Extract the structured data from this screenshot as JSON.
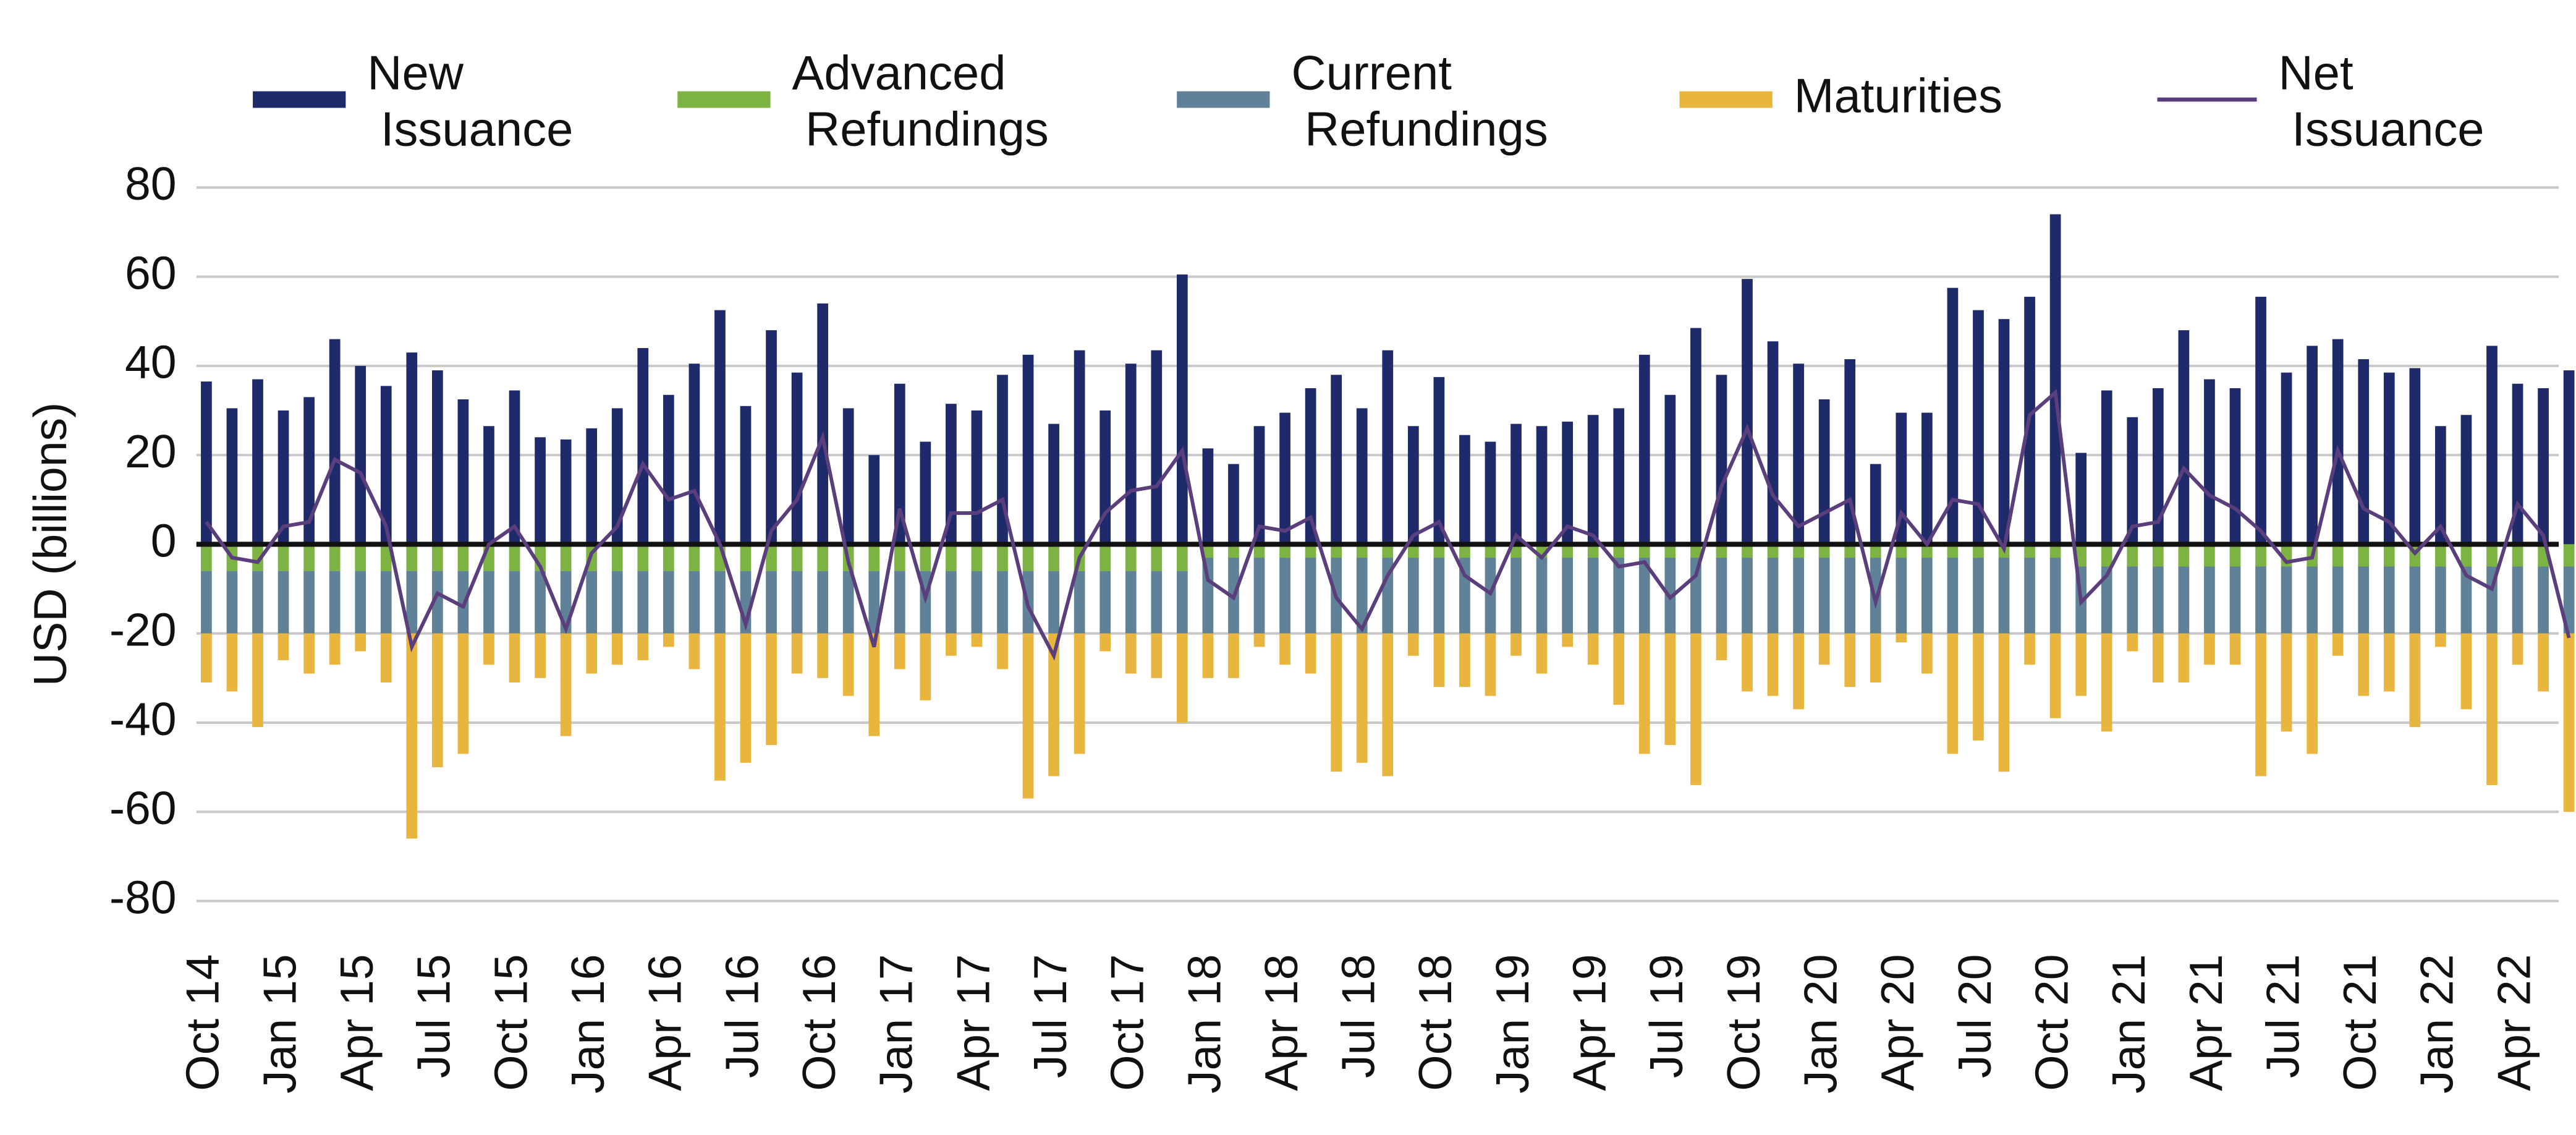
{
  "chart_data": {
    "type": "bar",
    "stacked": true,
    "y_label": "USD (billions)",
    "ylim": [
      -80,
      80
    ],
    "yticks": [
      -80,
      -60,
      -40,
      -20,
      0,
      20,
      40,
      60,
      80
    ],
    "grid": true,
    "legend": "top",
    "categories": [
      "Oct 14",
      null,
      null,
      "Jan 15",
      null,
      null,
      "Apr 15",
      null,
      null,
      "Jul 15",
      null,
      null,
      "Oct 15",
      null,
      null,
      "Jan 16",
      null,
      null,
      "Apr 16",
      null,
      null,
      "Jul 16",
      null,
      null,
      "Oct 16",
      null,
      null,
      "Jan 17",
      null,
      null,
      "Apr 17",
      null,
      null,
      "Jul 17",
      null,
      null,
      "Oct 17",
      null,
      null,
      "Jan 18",
      null,
      null,
      "Apr 18",
      null,
      null,
      "Jul 18",
      null,
      null,
      "Oct 18",
      null,
      null,
      "Jan 19",
      null,
      null,
      "Apr 19",
      null,
      null,
      "Jul 19",
      null,
      null,
      "Oct 19",
      null,
      null,
      "Jan 20",
      null,
      null,
      "Apr 20",
      null,
      null,
      "Jul 20",
      null,
      null,
      "Oct 20",
      null,
      null,
      "Jan 21",
      null,
      null,
      "Apr 21",
      null,
      null,
      "Jul 21",
      null,
      null,
      "Oct 21",
      null,
      null,
      "Jan 22",
      null,
      null,
      "Apr 22",
      null,
      null
    ],
    "series": [
      {
        "name": "New Issuance",
        "color": "#1f2a6b",
        "type": "bar",
        "values": [
          36.5,
          30.5,
          37,
          30,
          33,
          46,
          40,
          35.5,
          43,
          39,
          32.5,
          26.5,
          34.5,
          24,
          23.5,
          26,
          30.5,
          44,
          33.5,
          40.5,
          52.5,
          31,
          48,
          38.5,
          54,
          30.5,
          20,
          36,
          23,
          31.5,
          30,
          38,
          42.5,
          27,
          43.5,
          30,
          40.5,
          43.5,
          60.5,
          21.5,
          18,
          26.5,
          29.5,
          35,
          38,
          30.5,
          43.5,
          26.5,
          37.5,
          24.5,
          23,
          27,
          26.5,
          27.5,
          29,
          30.5,
          42.5,
          33.5,
          48.5,
          38,
          59.5,
          45.5,
          40.5,
          32.5,
          41.5,
          18,
          29.5,
          29.5,
          57.5,
          52.5,
          50.5,
          55.5,
          74,
          20.5,
          34.5,
          28.5,
          35,
          48,
          37,
          35,
          55.5,
          38.5,
          44.5,
          46,
          41.5,
          38.5,
          39.5,
          26.5,
          29,
          44.5,
          36,
          35,
          39
        ]
      },
      {
        "name": "Advanced Refundings",
        "color": "#7db342",
        "type": "bar",
        "values": [
          -6,
          -6,
          -6,
          -6,
          -6,
          -6,
          -6,
          -6,
          -6,
          -6,
          -6,
          -6,
          -6,
          -6,
          -6,
          -6,
          -6,
          -6,
          -6,
          -6,
          -6,
          -6,
          -6,
          -6,
          -6,
          -6,
          -6,
          -6,
          -6,
          -6,
          -6,
          -6,
          -6,
          -6,
          -6,
          -6,
          -6,
          -6,
          -6,
          -3,
          -3,
          -3,
          -3,
          -3,
          -3,
          -3,
          -3,
          -3,
          -3,
          -3,
          -3,
          -3,
          -3,
          -3,
          -3,
          -3,
          -3,
          -3,
          -3,
          -3,
          -3,
          -3,
          -3,
          -3,
          -3,
          -3,
          -3,
          -3,
          -3,
          -3,
          -3,
          -3,
          -3,
          -5,
          -5,
          -5,
          -5,
          -5,
          -5,
          -5,
          -5,
          -5,
          -5,
          -5,
          -5,
          -5,
          -5,
          -5,
          -5,
          -5,
          -5,
          -5,
          -5
        ]
      },
      {
        "name": "Current Refundings",
        "color": "#5f8298",
        "type": "bar",
        "values": [
          -14,
          -14,
          -14,
          -14,
          -14,
          -14,
          -14,
          -14,
          -14,
          -14,
          -14,
          -14,
          -14,
          -14,
          -14,
          -14,
          -14,
          -14,
          -14,
          -14,
          -14,
          -14,
          -14,
          -14,
          -14,
          -14,
          -14,
          -14,
          -14,
          -14,
          -14,
          -14,
          -14,
          -14,
          -14,
          -14,
          -14,
          -14,
          -14,
          -17,
          -17,
          -17,
          -17,
          -17,
          -17,
          -17,
          -17,
          -17,
          -17,
          -17,
          -17,
          -17,
          -17,
          -17,
          -17,
          -17,
          -17,
          -17,
          -17,
          -17,
          -17,
          -17,
          -17,
          -17,
          -17,
          -17,
          -17,
          -17,
          -17,
          -17,
          -17,
          -17,
          -17,
          -15,
          -15,
          -15,
          -15,
          -15,
          -15,
          -15,
          -15,
          -15,
          -15,
          -15,
          -15,
          -15,
          -15,
          -15,
          -15,
          -15,
          -15,
          -15,
          -15
        ]
      },
      {
        "name": "Maturities",
        "color": "#e8b53f",
        "type": "bar",
        "values": [
          -11,
          -13,
          -21,
          -6,
          -9,
          -7,
          -4,
          -11,
          -46,
          -30,
          -27,
          -7,
          -11,
          -10,
          -23,
          -9,
          -7,
          -6,
          -3,
          -8,
          -33,
          -29,
          -25,
          -9,
          -10,
          -14,
          -23,
          -8,
          -15,
          -5,
          -3,
          -8,
          -37,
          -32,
          -27,
          -4,
          -9,
          -10,
          -20,
          -10,
          -10,
          -3,
          -7,
          -9,
          -31,
          -29,
          -32,
          -5,
          -12,
          -12,
          -14,
          -5,
          -9,
          -3,
          -7,
          -16,
          -27,
          -25,
          -34,
          -6,
          -13,
          -14,
          -17,
          -7,
          -12,
          -11,
          -2,
          -9,
          -27,
          -24,
          -31,
          -7,
          -19,
          -14,
          -22,
          -4,
          -11,
          -11,
          -7,
          -7,
          -32,
          -22,
          -27,
          -5,
          -14,
          -13,
          -21,
          -3,
          -17,
          -34,
          -7,
          -13,
          -40
        ]
      },
      {
        "name": "Net Issuance",
        "color": "#5b3f7d",
        "type": "line",
        "values": [
          5,
          -3,
          -4,
          4,
          5,
          19,
          16,
          4,
          -23,
          -11,
          -14,
          0,
          4,
          -5,
          -19,
          -2,
          4,
          18,
          10,
          12,
          0,
          -18,
          3,
          10,
          24,
          -4,
          -23,
          8,
          -12,
          7,
          7,
          10,
          -14,
          -25,
          -3,
          7,
          12,
          13,
          21,
          -8,
          -12,
          4,
          3,
          6,
          -12,
          -19,
          -7,
          2,
          5,
          -7,
          -11,
          2,
          -3,
          4,
          2,
          -5,
          -4,
          -12,
          -7,
          13,
          26,
          11,
          4,
          7,
          10,
          -13,
          7,
          0,
          10,
          9,
          -1,
          29,
          34,
          -13,
          -7,
          4,
          5,
          17,
          11,
          8,
          3,
          -4,
          -3,
          21,
          8,
          5,
          -2,
          4,
          -7,
          -10,
          9,
          2,
          -21
        ]
      }
    ]
  }
}
